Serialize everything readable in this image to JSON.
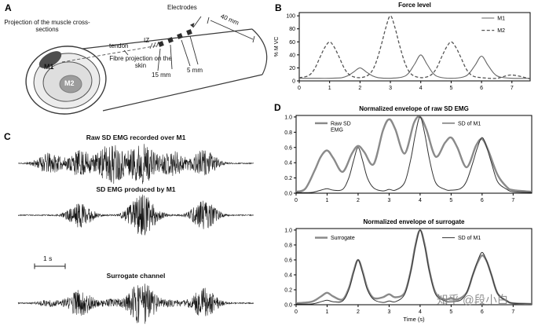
{
  "panels": {
    "a": "A",
    "b": "B",
    "c": "C",
    "d": "D"
  },
  "panel_a": {
    "projection_label": "Projection of the muscle cross-sections",
    "electrodes_label": "Electrodes",
    "dim_40": "40 mm",
    "dim_15": "15 mm",
    "dim_5": "5 mm",
    "tendon_label": "tendon",
    "iz_label": "IZ",
    "fibre_label": "Fibre projection on the skin",
    "m1_label": "M1",
    "m2_label": "M2"
  },
  "panel_c": {
    "trace_titles": [
      "Raw SD EMG recorded over M1",
      "SD EMG produced by M1",
      "Surrogate channel"
    ],
    "scale_bar": "1 s",
    "traces": [
      {
        "name": "raw-sd-emg-over-m1",
        "bursts": [
          {
            "c": 1,
            "a": 0.5,
            "w": 0.3
          },
          {
            "c": 2,
            "a": 0.62,
            "w": 0.3
          },
          {
            "c": 3,
            "a": 1.0,
            "w": 0.33
          },
          {
            "c": 4,
            "a": 1.0,
            "w": 0.33
          },
          {
            "c": 5,
            "a": 0.6,
            "w": 0.3
          },
          {
            "c": 6,
            "a": 0.65,
            "w": 0.3
          }
        ]
      },
      {
        "name": "sd-emg-by-m1",
        "bursts": [
          {
            "c": 2,
            "a": 0.6,
            "w": 0.3
          },
          {
            "c": 4,
            "a": 1.0,
            "w": 0.33
          },
          {
            "c": 6,
            "a": 0.7,
            "w": 0.3
          }
        ]
      },
      {
        "name": "surrogate-channel",
        "bursts": [
          {
            "c": 1,
            "a": 0.15,
            "w": 0.25
          },
          {
            "c": 2,
            "a": 0.6,
            "w": 0.3
          },
          {
            "c": 3,
            "a": 0.18,
            "w": 0.25
          },
          {
            "c": 4,
            "a": 1.0,
            "w": 0.33
          },
          {
            "c": 5,
            "a": 0.13,
            "w": 0.25
          },
          {
            "c": 6,
            "a": 0.68,
            "w": 0.3
          }
        ]
      }
    ]
  },
  "watermark": "知乎 @段小白",
  "chart_data": [
    {
      "id": "force_level",
      "type": "line",
      "title": "Force level",
      "xlabel": "",
      "ylabel": "% M VC",
      "xlim": [
        0,
        7.6
      ],
      "ylim": [
        0,
        105
      ],
      "xticks": [
        0,
        1,
        2,
        3,
        4,
        5,
        6,
        7
      ],
      "xticklabels": [
        "0",
        "1",
        "2",
        "3",
        "4",
        "5",
        "6",
        "7"
      ],
      "yticks": [
        0,
        20,
        40,
        60,
        80,
        100
      ],
      "yticklabels": [
        "0",
        "20",
        "40",
        "60",
        "80",
        "100"
      ],
      "legend": [
        {
          "label": "M1",
          "color": "#666666",
          "width": 1,
          "dash": null,
          "fx": 0.79,
          "fy": 0.08
        },
        {
          "label": "M2",
          "color": "#555555",
          "width": 1.2,
          "dash": "4,2.5",
          "fx": 0.79,
          "fy": 0.26
        }
      ],
      "series": [
        {
          "name": "M1",
          "color": "#666666",
          "width": 1.1,
          "dash": null,
          "points": [
            [
              0,
              4
            ],
            [
              0.5,
              4
            ],
            [
              1,
              4
            ],
            [
              1.4,
              5
            ],
            [
              1.6,
              8
            ],
            [
              1.8,
              14
            ],
            [
              2,
              20
            ],
            [
              2.2,
              14
            ],
            [
              2.4,
              8
            ],
            [
              2.6,
              5
            ],
            [
              3,
              4
            ],
            [
              3.4,
              6
            ],
            [
              3.6,
              12
            ],
            [
              3.8,
              26
            ],
            [
              4,
              40
            ],
            [
              4.2,
              26
            ],
            [
              4.4,
              12
            ],
            [
              4.6,
              6
            ],
            [
              5,
              4
            ],
            [
              5.4,
              6
            ],
            [
              5.6,
              12
            ],
            [
              5.8,
              25
            ],
            [
              6,
              38
            ],
            [
              6.2,
              25
            ],
            [
              6.4,
              12
            ],
            [
              6.6,
              6
            ],
            [
              7,
              4
            ],
            [
              7.6,
              4
            ]
          ]
        },
        {
          "name": "M2",
          "color": "#555555",
          "width": 1.3,
          "dash": "4,2.5",
          "points": [
            [
              0,
              5
            ],
            [
              0.3,
              8
            ],
            [
              0.5,
              18
            ],
            [
              0.7,
              38
            ],
            [
              0.85,
              52
            ],
            [
              1,
              60
            ],
            [
              1.15,
              52
            ],
            [
              1.3,
              38
            ],
            [
              1.5,
              18
            ],
            [
              1.7,
              8
            ],
            [
              2,
              5
            ],
            [
              2.3,
              10
            ],
            [
              2.5,
              25
            ],
            [
              2.7,
              55
            ],
            [
              2.85,
              82
            ],
            [
              3,
              100
            ],
            [
              3.15,
              82
            ],
            [
              3.3,
              55
            ],
            [
              3.5,
              25
            ],
            [
              3.7,
              10
            ],
            [
              4,
              5
            ],
            [
              4.3,
              8
            ],
            [
              4.5,
              18
            ],
            [
              4.7,
              38
            ],
            [
              4.85,
              52
            ],
            [
              5,
              60
            ],
            [
              5.15,
              52
            ],
            [
              5.3,
              38
            ],
            [
              5.5,
              18
            ],
            [
              5.7,
              8
            ],
            [
              6,
              5
            ],
            [
              6.5,
              4
            ],
            [
              7,
              9
            ],
            [
              7.6,
              3
            ]
          ]
        }
      ]
    },
    {
      "id": "envelope_raw",
      "type": "line",
      "title": "Normalized envelope of raw SD EMG",
      "xlabel": "",
      "ylabel": "",
      "xlim": [
        0,
        7.6
      ],
      "ylim": [
        0,
        1.02
      ],
      "xticks": [
        0,
        1,
        2,
        3,
        4,
        5,
        6,
        7
      ],
      "xticklabels": [
        "0",
        "1",
        "2",
        "3",
        "4",
        "5",
        "6",
        "7"
      ],
      "yticks": [
        0,
        0.2,
        0.4,
        0.6,
        0.8,
        1.0
      ],
      "yticklabels": [
        "0.0",
        "0.2",
        "0.4",
        "0.6",
        "0.8",
        "1.0"
      ],
      "legend": [
        {
          "label": "Raw SD\nEMG",
          "color": "#8a8a8a",
          "width": 2.5,
          "dash": null,
          "fx": 0.08,
          "fy": 0.1
        },
        {
          "label": "SD of M1",
          "color": "#333333",
          "width": 1,
          "dash": null,
          "fx": 0.62,
          "fy": 0.1
        }
      ],
      "series": [
        {
          "name": "Raw SD EMG",
          "color": "#8a8a8a",
          "width": 2.4,
          "dash": null,
          "points": [
            [
              0,
              0.02
            ],
            [
              0.3,
              0.06
            ],
            [
              0.6,
              0.3
            ],
            [
              0.8,
              0.48
            ],
            [
              1,
              0.56
            ],
            [
              1.2,
              0.46
            ],
            [
              1.5,
              0.28
            ],
            [
              1.8,
              0.52
            ],
            [
              2,
              0.62
            ],
            [
              2.2,
              0.54
            ],
            [
              2.5,
              0.38
            ],
            [
              2.8,
              0.82
            ],
            [
              3,
              0.97
            ],
            [
              3.2,
              0.84
            ],
            [
              3.5,
              0.52
            ],
            [
              3.8,
              0.92
            ],
            [
              4,
              1.0
            ],
            [
              4.2,
              0.84
            ],
            [
              4.5,
              0.48
            ],
            [
              4.8,
              0.66
            ],
            [
              5,
              0.73
            ],
            [
              5.2,
              0.6
            ],
            [
              5.5,
              0.34
            ],
            [
              5.8,
              0.62
            ],
            [
              6,
              0.71
            ],
            [
              6.2,
              0.56
            ],
            [
              6.5,
              0.24
            ],
            [
              6.8,
              0.08
            ],
            [
              7,
              0.04
            ],
            [
              7.6,
              0.02
            ]
          ]
        },
        {
          "name": "SD of M1",
          "color": "#333333",
          "width": 1,
          "dash": null,
          "points": [
            [
              0,
              0.01
            ],
            [
              0.5,
              0.01
            ],
            [
              0.8,
              0.04
            ],
            [
              1,
              0.06
            ],
            [
              1.2,
              0.04
            ],
            [
              1.5,
              0.05
            ],
            [
              1.7,
              0.2
            ],
            [
              1.85,
              0.42
            ],
            [
              2,
              0.6
            ],
            [
              2.15,
              0.42
            ],
            [
              2.3,
              0.2
            ],
            [
              2.5,
              0.07
            ],
            [
              2.8,
              0.03
            ],
            [
              3,
              0.05
            ],
            [
              3.2,
              0.04
            ],
            [
              3.5,
              0.14
            ],
            [
              3.7,
              0.45
            ],
            [
              3.85,
              0.78
            ],
            [
              4,
              1.0
            ],
            [
              4.15,
              0.78
            ],
            [
              4.3,
              0.45
            ],
            [
              4.5,
              0.14
            ],
            [
              4.8,
              0.05
            ],
            [
              5,
              0.04
            ],
            [
              5.3,
              0.06
            ],
            [
              5.5,
              0.16
            ],
            [
              5.7,
              0.4
            ],
            [
              5.85,
              0.6
            ],
            [
              6,
              0.73
            ],
            [
              6.15,
              0.6
            ],
            [
              6.3,
              0.4
            ],
            [
              6.5,
              0.15
            ],
            [
              6.8,
              0.05
            ],
            [
              7,
              0.02
            ],
            [
              7.6,
              0.01
            ]
          ]
        }
      ]
    },
    {
      "id": "envelope_surrogate",
      "type": "line",
      "title": "Normalized envelope of surrogate",
      "xlabel": "Time (s)",
      "ylabel": "",
      "xlim": [
        0,
        7.6
      ],
      "ylim": [
        0,
        1.02
      ],
      "xticks": [
        0,
        1,
        2,
        3,
        4,
        5,
        6,
        7
      ],
      "xticklabels": [
        "0",
        "1",
        "2",
        "3",
        "4",
        "5",
        "6",
        "7"
      ],
      "yticks": [
        0,
        0.2,
        0.4,
        0.6,
        0.8,
        1.0
      ],
      "yticklabels": [
        "0.0",
        "0.2",
        "0.4",
        "0.6",
        "0.8",
        "1.0"
      ],
      "legend": [
        {
          "label": "Surrogate",
          "color": "#8a8a8a",
          "width": 2.5,
          "dash": null,
          "fx": 0.08,
          "fy": 0.12
        },
        {
          "label": "SD of M1",
          "color": "#333333",
          "width": 1,
          "dash": null,
          "fx": 0.62,
          "fy": 0.12
        }
      ],
      "series": [
        {
          "name": "Surrogate",
          "color": "#8a8a8a",
          "width": 2.4,
          "dash": null,
          "points": [
            [
              0,
              0.02
            ],
            [
              0.5,
              0.04
            ],
            [
              0.8,
              0.11
            ],
            [
              1,
              0.16
            ],
            [
              1.2,
              0.11
            ],
            [
              1.5,
              0.07
            ],
            [
              1.7,
              0.22
            ],
            [
              1.85,
              0.44
            ],
            [
              2,
              0.6
            ],
            [
              2.15,
              0.44
            ],
            [
              2.3,
              0.22
            ],
            [
              2.5,
              0.09
            ],
            [
              2.8,
              0.1
            ],
            [
              3,
              0.14
            ],
            [
              3.2,
              0.1
            ],
            [
              3.5,
              0.16
            ],
            [
              3.7,
              0.46
            ],
            [
              3.85,
              0.8
            ],
            [
              4,
              1.0
            ],
            [
              4.15,
              0.8
            ],
            [
              4.3,
              0.46
            ],
            [
              4.5,
              0.16
            ],
            [
              4.8,
              0.07
            ],
            [
              5,
              0.09
            ],
            [
              5.2,
              0.07
            ],
            [
              5.5,
              0.16
            ],
            [
              5.7,
              0.4
            ],
            [
              5.85,
              0.56
            ],
            [
              6,
              0.66
            ],
            [
              6.15,
              0.58
            ],
            [
              6.3,
              0.4
            ],
            [
              6.5,
              0.15
            ],
            [
              6.8,
              0.05
            ],
            [
              7,
              0.02
            ],
            [
              7.6,
              0.01
            ]
          ]
        },
        {
          "name": "SD of M1",
          "color": "#333333",
          "width": 1,
          "dash": null,
          "points": [
            [
              0,
              0.01
            ],
            [
              0.5,
              0.01
            ],
            [
              0.8,
              0.04
            ],
            [
              1,
              0.06
            ],
            [
              1.2,
              0.04
            ],
            [
              1.5,
              0.05
            ],
            [
              1.7,
              0.2
            ],
            [
              1.85,
              0.42
            ],
            [
              2,
              0.6
            ],
            [
              2.15,
              0.42
            ],
            [
              2.3,
              0.2
            ],
            [
              2.5,
              0.07
            ],
            [
              2.8,
              0.03
            ],
            [
              3,
              0.05
            ],
            [
              3.2,
              0.04
            ],
            [
              3.5,
              0.14
            ],
            [
              3.7,
              0.45
            ],
            [
              3.85,
              0.78
            ],
            [
              4,
              1.0
            ],
            [
              4.15,
              0.78
            ],
            [
              4.3,
              0.45
            ],
            [
              4.5,
              0.14
            ],
            [
              4.8,
              0.05
            ],
            [
              5,
              0.04
            ],
            [
              5.3,
              0.06
            ],
            [
              5.5,
              0.16
            ],
            [
              5.7,
              0.4
            ],
            [
              5.85,
              0.58
            ],
            [
              6,
              0.7
            ],
            [
              6.15,
              0.58
            ],
            [
              6.3,
              0.4
            ],
            [
              6.5,
              0.15
            ],
            [
              6.8,
              0.05
            ],
            [
              7,
              0.02
            ],
            [
              7.6,
              0.01
            ]
          ]
        }
      ]
    }
  ]
}
